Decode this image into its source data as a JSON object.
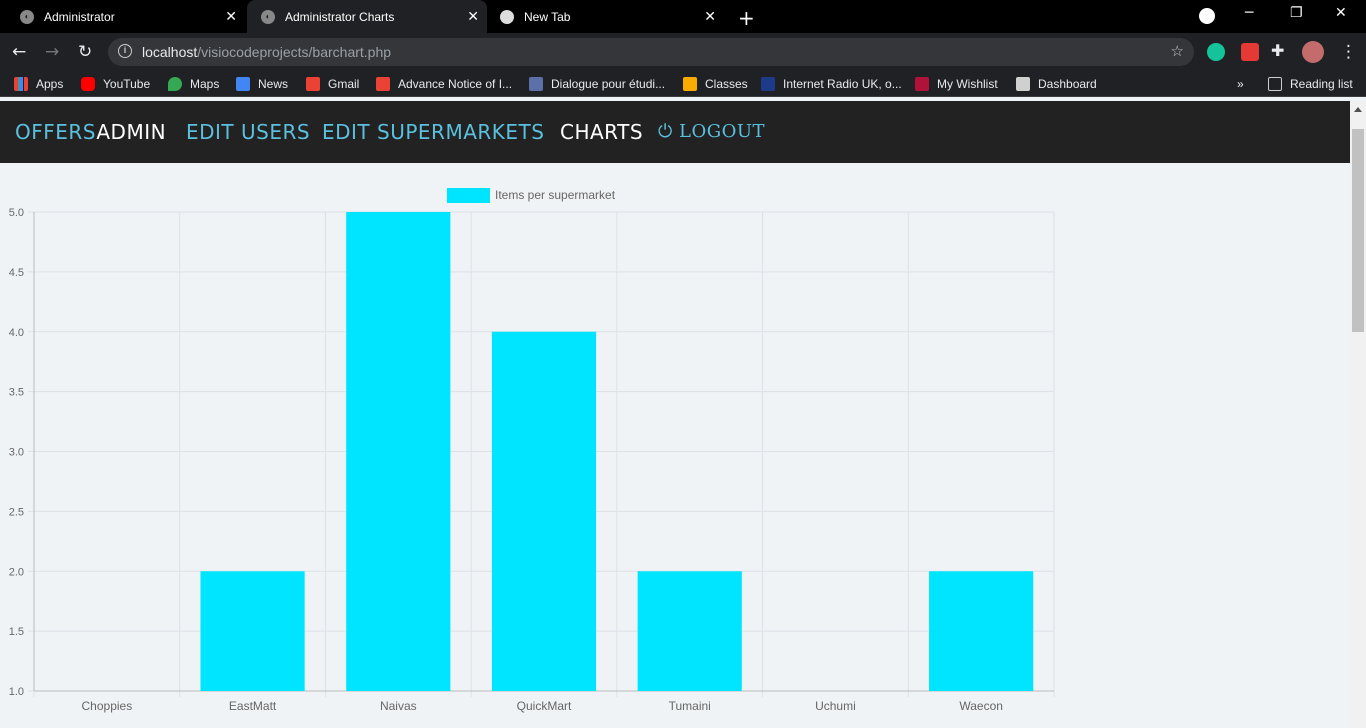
{
  "browser": {
    "tabs": [
      {
        "title": "Administrator",
        "active": false
      },
      {
        "title": "Administrator Charts",
        "active": true
      },
      {
        "title": "New Tab",
        "active": false
      }
    ],
    "url_host": "localhost",
    "url_path": "/visiocodeprojects/barchart.php",
    "bookmarks": [
      {
        "label": "Apps",
        "icon": "apps-grid-icon"
      },
      {
        "label": "YouTube",
        "icon": "youtube-icon"
      },
      {
        "label": "Maps",
        "icon": "maps-icon"
      },
      {
        "label": "News",
        "icon": "news-icon"
      },
      {
        "label": "Gmail",
        "icon": "gmail-icon"
      },
      {
        "label": "Advance Notice of I...",
        "icon": "gmail-icon"
      },
      {
        "label": "Dialogue pour étudi...",
        "icon": "doc-icon"
      },
      {
        "label": "Classes",
        "icon": "classroom-icon"
      },
      {
        "label": "Internet Radio UK, o...",
        "icon": "uk-flag-icon"
      },
      {
        "label": "My Wishlist",
        "icon": "wishlist-icon"
      },
      {
        "label": "Dashboard",
        "icon": "dashboard-icon"
      }
    ],
    "reading_list": "Reading list",
    "overflow": "»"
  },
  "nav": {
    "brand_part1": "OFFERS",
    "brand_part2": "ADMIN",
    "edit_users": "EDIT USERS",
    "edit_supermarkets": "EDIT SUPERMARKETS",
    "charts": "CHARTS",
    "logout": "LOGOUT"
  },
  "colors": {
    "bar": "#00e5ff",
    "nav_accent": "#5bc0de",
    "nav_bg": "#222222"
  },
  "chart_data": {
    "type": "bar",
    "categories": [
      "Choppies",
      "EastMatt",
      "Naivas",
      "QuickMart",
      "Tumaini",
      "Uchumi",
      "Waecon"
    ],
    "series": [
      {
        "name": "Items per supermarket",
        "values": [
          1,
          2,
          5,
          4,
          2,
          1,
          2
        ]
      }
    ],
    "ylim": [
      1.0,
      5.0
    ],
    "yticks": [
      "1.0",
      "1.5",
      "2.0",
      "2.5",
      "3.0",
      "3.5",
      "4.0",
      "4.5",
      "5.0"
    ],
    "grid": true,
    "legend": "top"
  }
}
